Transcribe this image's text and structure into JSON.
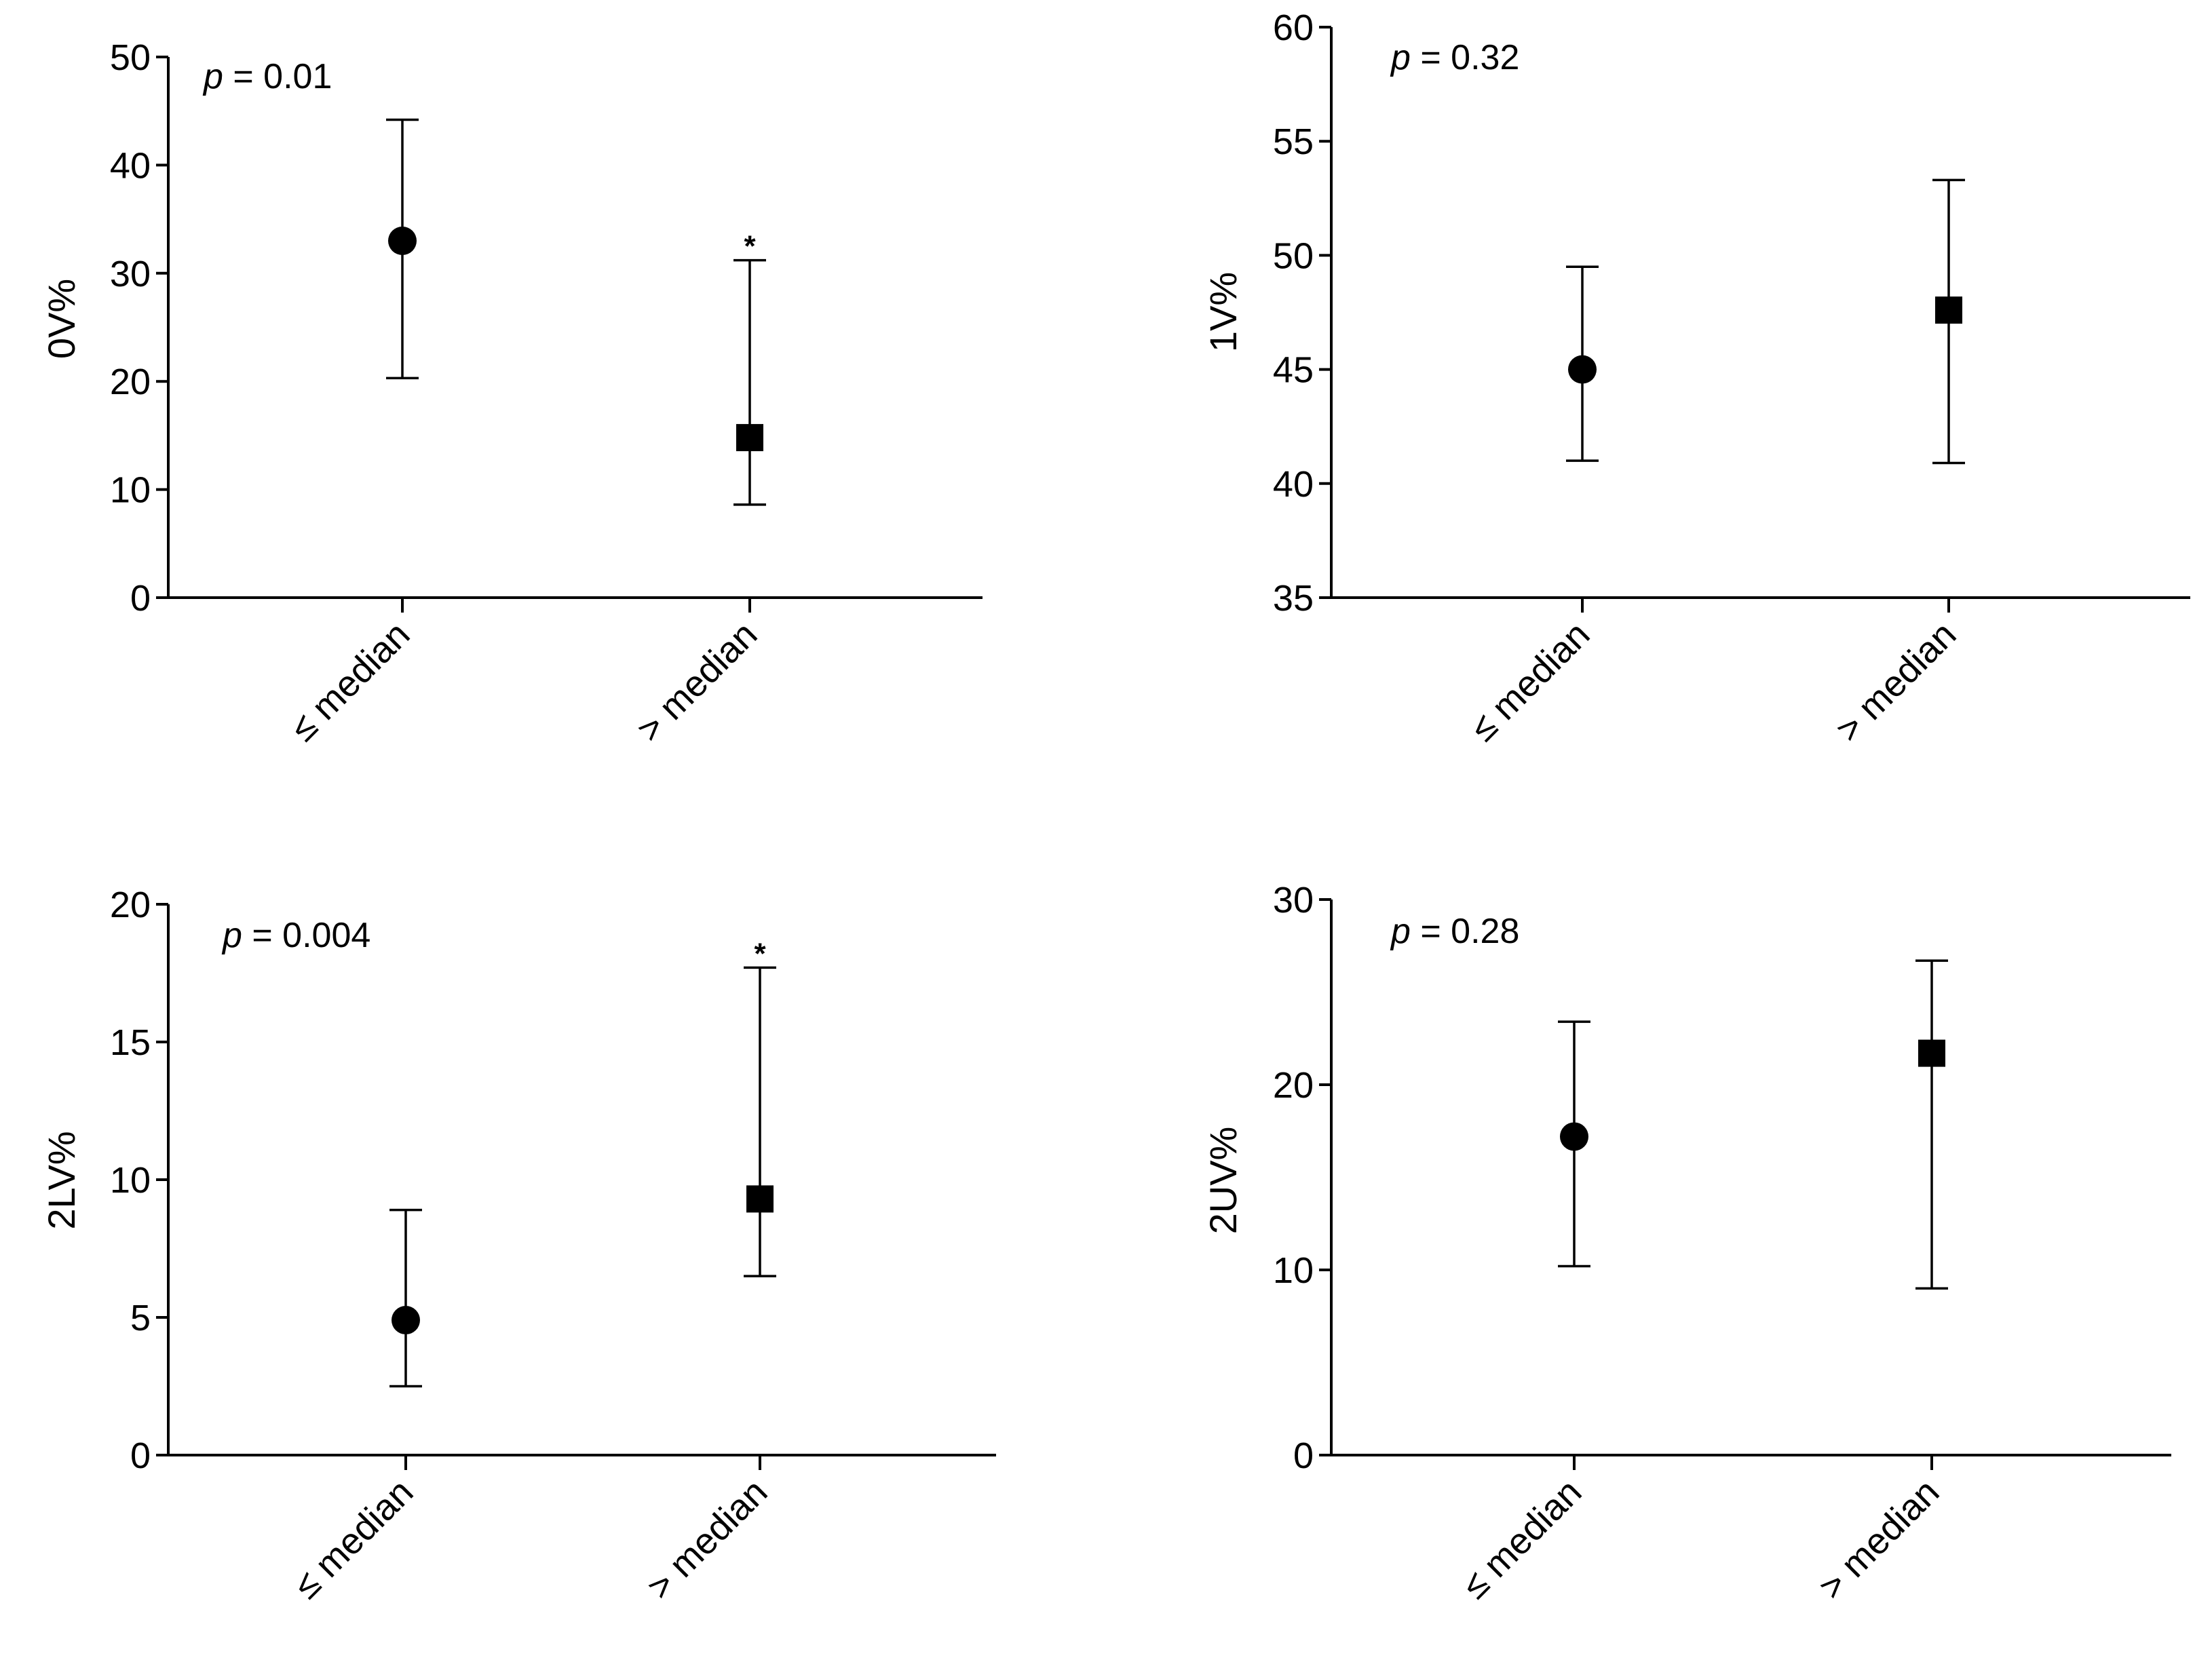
{
  "chart_data": [
    {
      "type": "scatter",
      "panel": "top-left",
      "ylabel": "0V%",
      "ylim": [
        0,
        50
      ],
      "yticks": [
        0,
        10,
        20,
        30,
        40,
        50
      ],
      "categories": [
        "≤ median",
        "> median"
      ],
      "points": [
        {
          "category": "≤ median",
          "value": 33,
          "lower": 20.3,
          "upper": 44.2,
          "marker": "circle",
          "annotation": ""
        },
        {
          "category": "> median",
          "value": 14.8,
          "lower": 8.6,
          "upper": 31.2,
          "marker": "square",
          "annotation": "*"
        }
      ],
      "p_prefix": "p",
      "p_text": " = 0.01"
    },
    {
      "type": "scatter",
      "panel": "top-right",
      "ylabel": "1V%",
      "ylim": [
        35,
        60
      ],
      "yticks": [
        35,
        40,
        45,
        50,
        55,
        60
      ],
      "categories": [
        "≤ median",
        "> median"
      ],
      "points": [
        {
          "category": "≤ median",
          "value": 45,
          "lower": 41,
          "upper": 49.5,
          "marker": "circle",
          "annotation": ""
        },
        {
          "category": "> median",
          "value": 47.6,
          "lower": 40.9,
          "upper": 53.3,
          "marker": "square",
          "annotation": ""
        }
      ],
      "p_prefix": "p",
      "p_text": " = 0.32"
    },
    {
      "type": "scatter",
      "panel": "bottom-left",
      "ylabel": "2LV%",
      "ylim": [
        0,
        20
      ],
      "yticks": [
        0,
        5,
        10,
        15,
        20
      ],
      "categories": [
        "≤ median",
        "> median"
      ],
      "points": [
        {
          "category": "≤ median",
          "value": 4.9,
          "lower": 2.5,
          "upper": 8.9,
          "marker": "circle",
          "annotation": ""
        },
        {
          "category": "> median",
          "value": 9.3,
          "lower": 6.5,
          "upper": 17.7,
          "marker": "square",
          "annotation": "*"
        }
      ],
      "p_prefix": "p",
      "p_text": " = 0.004"
    },
    {
      "type": "scatter",
      "panel": "bottom-right",
      "ylabel": "2UV%",
      "ylim": [
        0,
        30
      ],
      "yticks": [
        0,
        10,
        20,
        30
      ],
      "categories": [
        "≤ median",
        "> median"
      ],
      "points": [
        {
          "category": "≤ median",
          "value": 17.2,
          "lower": 10.2,
          "upper": 23.4,
          "marker": "circle",
          "annotation": ""
        },
        {
          "category": "> median",
          "value": 21.7,
          "lower": 9,
          "upper": 26.7,
          "marker": "square",
          "annotation": ""
        }
      ],
      "p_prefix": "p",
      "p_text": " = 0.28"
    }
  ]
}
